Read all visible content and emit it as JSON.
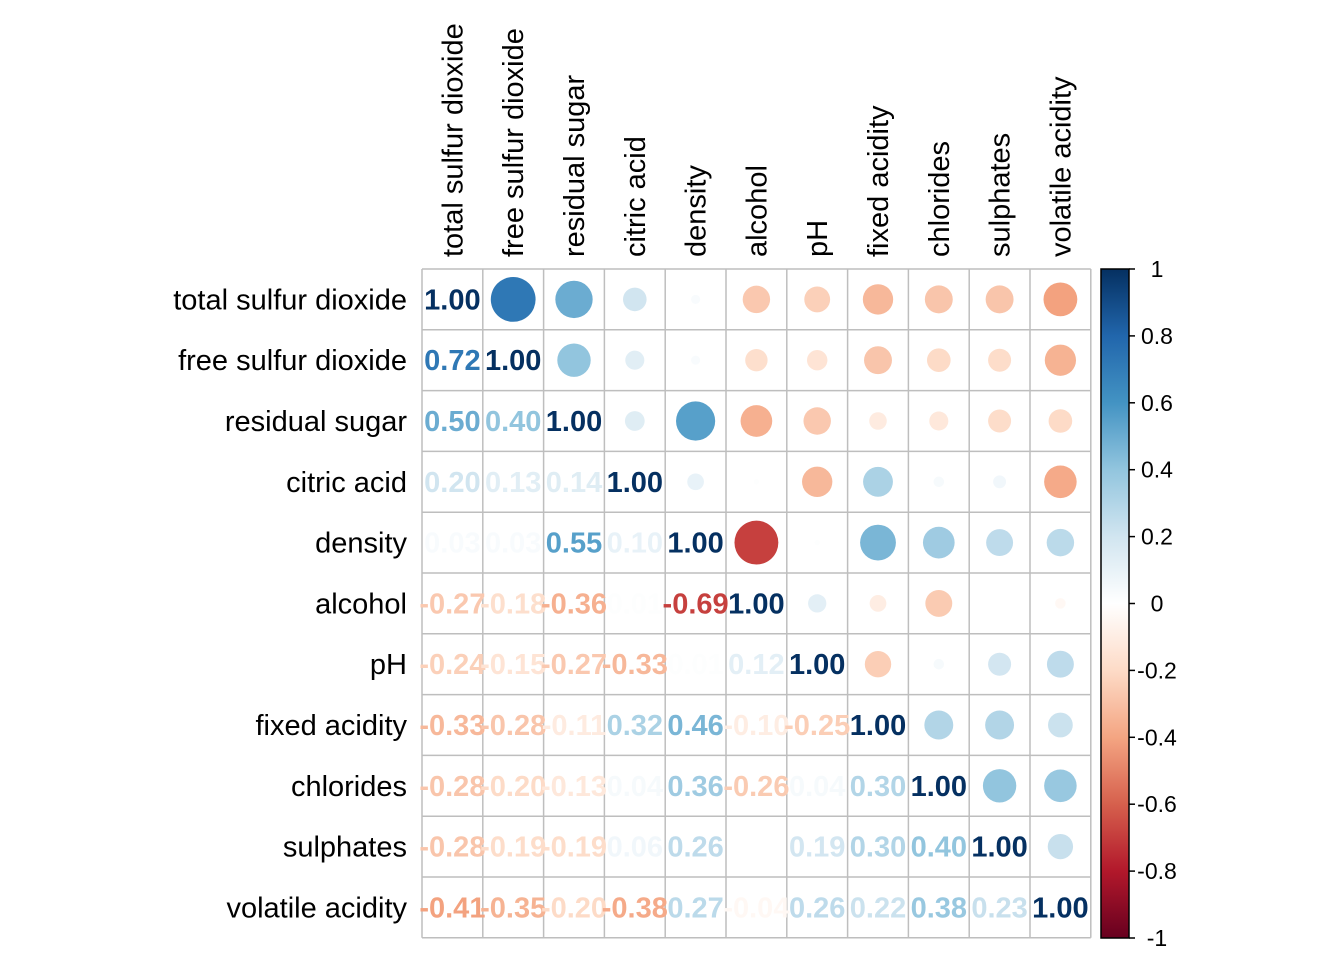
{
  "chart_data": {
    "type": "heatmap",
    "style": "correlation matrix (corrplot): upper triangle circles, lower triangle numbers",
    "variables": [
      "total sulfur dioxide",
      "free sulfur dioxide",
      "residual sugar",
      "citric acid",
      "density",
      "alcohol",
      "pH",
      "fixed acidity",
      "chlorides",
      "sulphates",
      "volatile acidity"
    ],
    "matrix": [
      [
        1.0,
        0.72,
        0.5,
        0.2,
        0.03,
        -0.27,
        -0.24,
        -0.33,
        -0.28,
        -0.28,
        -0.41
      ],
      [
        0.72,
        1.0,
        0.4,
        0.13,
        0.03,
        -0.18,
        -0.15,
        -0.28,
        -0.2,
        -0.19,
        -0.35
      ],
      [
        0.5,
        0.4,
        1.0,
        0.14,
        0.55,
        -0.36,
        -0.27,
        -0.11,
        -0.13,
        -0.19,
        -0.2
      ],
      [
        0.2,
        0.13,
        0.14,
        1.0,
        0.1,
        0.01,
        -0.33,
        0.32,
        0.04,
        0.06,
        -0.38
      ],
      [
        0.03,
        0.03,
        0.55,
        0.1,
        1.0,
        -0.69,
        0.01,
        0.46,
        0.36,
        0.26,
        0.27
      ],
      [
        -0.27,
        -0.18,
        -0.36,
        0.01,
        -0.69,
        1.0,
        0.12,
        -0.1,
        -0.26,
        0.0,
        -0.04
      ],
      [
        -0.24,
        -0.15,
        -0.27,
        -0.33,
        0.01,
        0.12,
        1.0,
        -0.25,
        0.04,
        0.19,
        0.26
      ],
      [
        -0.33,
        -0.28,
        -0.11,
        0.32,
        0.46,
        -0.1,
        -0.25,
        1.0,
        0.3,
        0.3,
        0.22
      ],
      [
        -0.28,
        -0.2,
        -0.13,
        0.04,
        0.36,
        -0.26,
        0.04,
        0.3,
        1.0,
        0.4,
        0.38
      ],
      [
        -0.28,
        -0.19,
        -0.19,
        0.06,
        0.26,
        0.0,
        0.19,
        0.3,
        0.4,
        1.0,
        0.23
      ],
      [
        -0.41,
        -0.35,
        -0.2,
        -0.38,
        0.27,
        -0.04,
        0.26,
        0.22,
        0.38,
        0.23,
        1.0
      ]
    ],
    "color_scale": {
      "range": [
        -1,
        1
      ],
      "ticks": [
        "1",
        "0.8",
        "0.6",
        "0.4",
        "0.2",
        "0",
        "-0.2",
        "-0.4",
        "-0.6",
        "-0.8",
        "-1"
      ],
      "stops": [
        "#67001F",
        "#B2182B",
        "#D6604D",
        "#F4A582",
        "#FDDBC7",
        "#FFFFFF",
        "#D1E5F0",
        "#92C5DE",
        "#4393C3",
        "#2166AC",
        "#053061"
      ],
      "legend_position": "right"
    },
    "grid": true
  }
}
